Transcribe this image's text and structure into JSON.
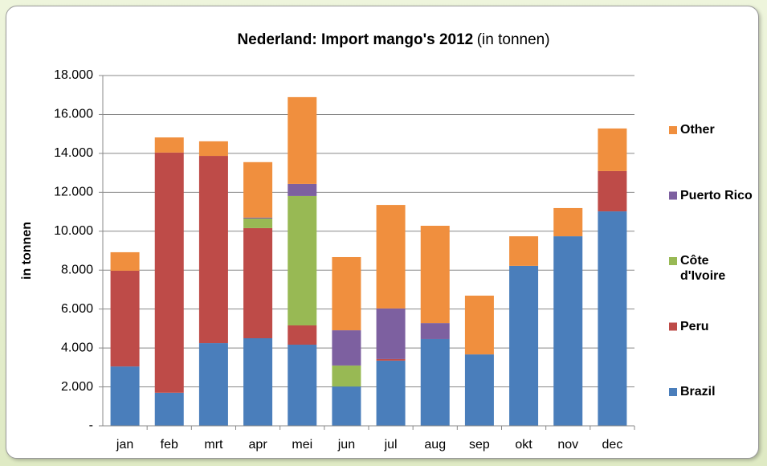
{
  "chart_data": {
    "type": "stacked_bar",
    "title": "Nederland: Import mango's 2012",
    "subtitle": "(in tonnen)",
    "y_label": "in tonnen",
    "categories": [
      "jan",
      "feb",
      "mrt",
      "apr",
      "mei",
      "jun",
      "jul",
      "aug",
      "sep",
      "okt",
      "nov",
      "dec"
    ],
    "series": [
      {
        "name": "Brazil",
        "color": "#4a7ebb",
        "values": [
          3050,
          1700,
          4250,
          4500,
          4170,
          2020,
          3350,
          4460,
          3670,
          8220,
          9740,
          11020
        ]
      },
      {
        "name": "Peru",
        "color": "#be4b48",
        "values": [
          4920,
          12340,
          9620,
          5660,
          990,
          0,
          80,
          0,
          0,
          0,
          0,
          2070
        ]
      },
      {
        "name": "Côte d'Ivoire",
        "color": "#98b954",
        "values": [
          0,
          0,
          0,
          490,
          6650,
          1080,
          0,
          0,
          0,
          0,
          0,
          0
        ]
      },
      {
        "name": "Puerto Rico",
        "color": "#7d60a0",
        "values": [
          0,
          0,
          0,
          50,
          620,
          1810,
          2600,
          820,
          0,
          0,
          0,
          0
        ]
      },
      {
        "name": "Other",
        "color": "#f08f3e",
        "values": [
          950,
          780,
          750,
          2850,
          4460,
          3760,
          5320,
          5000,
          3020,
          1520,
          1450,
          2190
        ]
      }
    ],
    "ylim": [
      0,
      18000
    ],
    "yticks": [
      {
        "value": 0,
        "label": "-"
      },
      {
        "value": 2000,
        "label": "2.000"
      },
      {
        "value": 4000,
        "label": "4.000"
      },
      {
        "value": 6000,
        "label": "6.000"
      },
      {
        "value": 8000,
        "label": "8.000"
      },
      {
        "value": 10000,
        "label": "10.000"
      },
      {
        "value": 12000,
        "label": "12.000"
      },
      {
        "value": 14000,
        "label": "14.000"
      },
      {
        "value": 16000,
        "label": "16.000"
      },
      {
        "value": 18000,
        "label": "18.000"
      }
    ],
    "grid": true,
    "legend": "right"
  }
}
